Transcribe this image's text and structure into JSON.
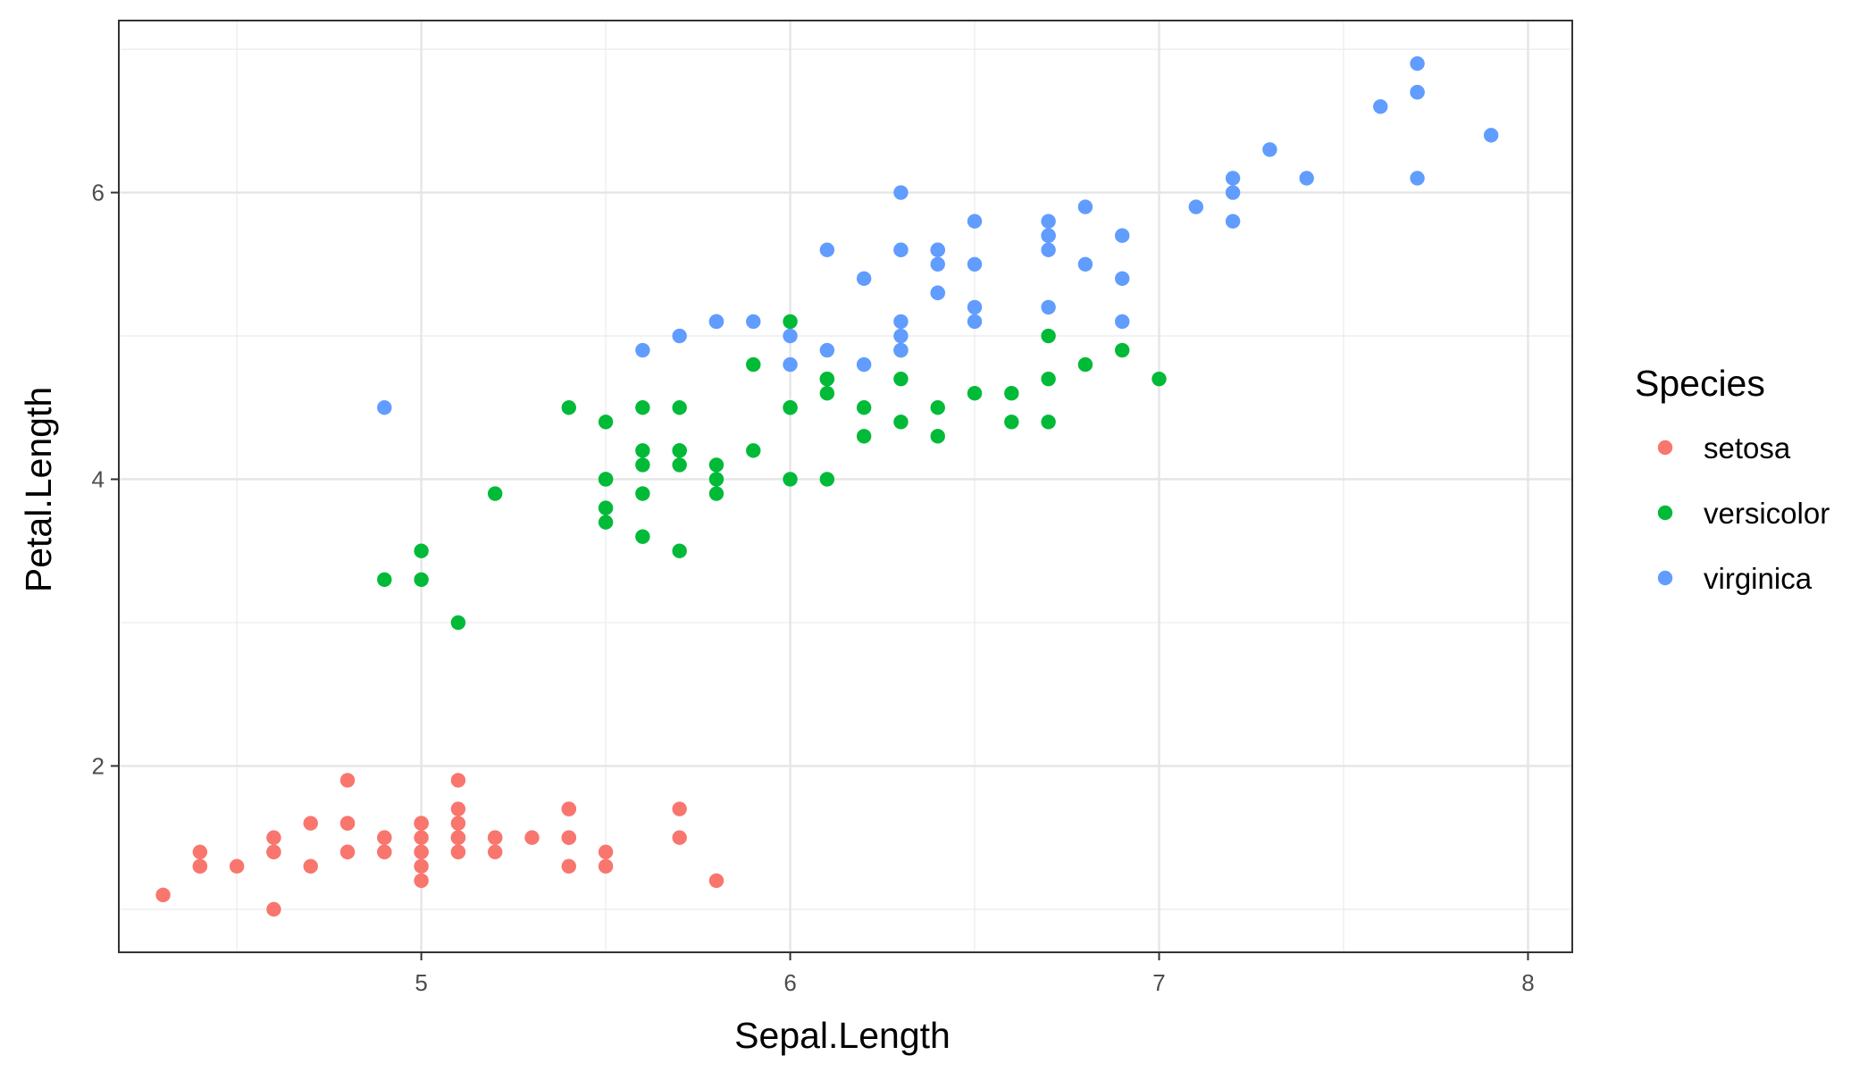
{
  "chart_data": {
    "type": "scatter",
    "xlabel": "Sepal.Length",
    "ylabel": "Petal.Length",
    "xlim": [
      4.18,
      8.12
    ],
    "ylim": [
      0.7,
      7.2
    ],
    "x_ticks": [
      "5",
      "6",
      "7",
      "8"
    ],
    "y_ticks": [
      "2",
      "4",
      "6"
    ],
    "grid": true,
    "legend": {
      "title": "Species",
      "position": "right"
    },
    "series": [
      {
        "name": "setosa",
        "color": "#F8766D",
        "points": [
          [
            5.1,
            1.4
          ],
          [
            4.9,
            1.4
          ],
          [
            4.7,
            1.3
          ],
          [
            4.6,
            1.5
          ],
          [
            5.0,
            1.4
          ],
          [
            5.4,
            1.7
          ],
          [
            4.6,
            1.4
          ],
          [
            5.0,
            1.5
          ],
          [
            4.4,
            1.4
          ],
          [
            4.9,
            1.5
          ],
          [
            5.4,
            1.5
          ],
          [
            4.8,
            1.6
          ],
          [
            4.8,
            1.4
          ],
          [
            4.3,
            1.1
          ],
          [
            5.8,
            1.2
          ],
          [
            5.7,
            1.5
          ],
          [
            5.4,
            1.3
          ],
          [
            5.1,
            1.4
          ],
          [
            5.7,
            1.7
          ],
          [
            5.1,
            1.5
          ],
          [
            5.4,
            1.7
          ],
          [
            5.1,
            1.5
          ],
          [
            4.6,
            1.0
          ],
          [
            5.1,
            1.7
          ],
          [
            4.8,
            1.9
          ],
          [
            5.0,
            1.6
          ],
          [
            5.0,
            1.6
          ],
          [
            5.2,
            1.5
          ],
          [
            5.2,
            1.4
          ],
          [
            4.7,
            1.6
          ],
          [
            4.8,
            1.6
          ],
          [
            5.4,
            1.5
          ],
          [
            5.2,
            1.5
          ],
          [
            5.5,
            1.4
          ],
          [
            4.9,
            1.5
          ],
          [
            5.0,
            1.2
          ],
          [
            5.5,
            1.3
          ],
          [
            4.9,
            1.4
          ],
          [
            4.4,
            1.3
          ],
          [
            5.1,
            1.5
          ],
          [
            5.0,
            1.3
          ],
          [
            4.5,
            1.3
          ],
          [
            4.4,
            1.3
          ],
          [
            5.0,
            1.6
          ],
          [
            5.1,
            1.9
          ],
          [
            4.8,
            1.4
          ],
          [
            5.1,
            1.6
          ],
          [
            4.6,
            1.4
          ],
          [
            5.3,
            1.5
          ],
          [
            5.0,
            1.4
          ]
        ]
      },
      {
        "name": "versicolor",
        "color": "#00BA38",
        "points": [
          [
            7.0,
            4.7
          ],
          [
            6.4,
            4.5
          ],
          [
            6.9,
            4.9
          ],
          [
            5.5,
            4.0
          ],
          [
            6.5,
            4.6
          ],
          [
            5.7,
            4.5
          ],
          [
            6.3,
            4.7
          ],
          [
            4.9,
            3.3
          ],
          [
            6.6,
            4.6
          ],
          [
            5.2,
            3.9
          ],
          [
            5.0,
            3.5
          ],
          [
            5.9,
            4.2
          ],
          [
            6.0,
            4.0
          ],
          [
            6.1,
            4.7
          ],
          [
            5.6,
            3.6
          ],
          [
            6.7,
            4.4
          ],
          [
            5.6,
            4.5
          ],
          [
            5.8,
            4.1
          ],
          [
            6.2,
            4.5
          ],
          [
            5.6,
            3.9
          ],
          [
            5.9,
            4.8
          ],
          [
            6.1,
            4.0
          ],
          [
            6.3,
            4.9
          ],
          [
            6.1,
            4.7
          ],
          [
            6.4,
            4.3
          ],
          [
            6.6,
            4.4
          ],
          [
            6.8,
            4.8
          ],
          [
            6.7,
            5.0
          ],
          [
            6.0,
            4.5
          ],
          [
            5.7,
            3.5
          ],
          [
            5.5,
            3.8
          ],
          [
            5.5,
            3.7
          ],
          [
            5.8,
            3.9
          ],
          [
            6.0,
            5.1
          ],
          [
            5.4,
            4.5
          ],
          [
            6.0,
            4.5
          ],
          [
            6.7,
            4.7
          ],
          [
            6.3,
            4.4
          ],
          [
            5.6,
            4.1
          ],
          [
            5.5,
            4.0
          ],
          [
            5.5,
            4.4
          ],
          [
            6.1,
            4.6
          ],
          [
            5.8,
            4.0
          ],
          [
            5.0,
            3.3
          ],
          [
            5.6,
            4.2
          ],
          [
            5.7,
            4.2
          ],
          [
            5.7,
            4.2
          ],
          [
            6.2,
            4.3
          ],
          [
            5.1,
            3.0
          ],
          [
            5.7,
            4.1
          ]
        ]
      },
      {
        "name": "virginica",
        "color": "#619CFF",
        "points": [
          [
            6.3,
            6.0
          ],
          [
            5.8,
            5.1
          ],
          [
            7.1,
            5.9
          ],
          [
            6.3,
            5.6
          ],
          [
            6.5,
            5.8
          ],
          [
            7.6,
            6.6
          ],
          [
            4.9,
            4.5
          ],
          [
            7.3,
            6.3
          ],
          [
            6.7,
            5.8
          ],
          [
            7.2,
            6.1
          ],
          [
            6.5,
            5.1
          ],
          [
            6.4,
            5.3
          ],
          [
            6.8,
            5.5
          ],
          [
            5.7,
            5.0
          ],
          [
            5.8,
            5.1
          ],
          [
            6.4,
            5.3
          ],
          [
            6.5,
            5.5
          ],
          [
            7.7,
            6.7
          ],
          [
            7.7,
            6.9
          ],
          [
            6.0,
            5.0
          ],
          [
            6.9,
            5.7
          ],
          [
            5.6,
            4.9
          ],
          [
            7.7,
            6.7
          ],
          [
            6.3,
            4.9
          ],
          [
            6.7,
            5.7
          ],
          [
            7.2,
            6.0
          ],
          [
            6.2,
            4.8
          ],
          [
            6.1,
            4.9
          ],
          [
            6.4,
            5.6
          ],
          [
            7.2,
            5.8
          ],
          [
            7.4,
            6.1
          ],
          [
            7.9,
            6.4
          ],
          [
            6.4,
            5.6
          ],
          [
            6.3,
            5.1
          ],
          [
            6.1,
            5.6
          ],
          [
            7.7,
            6.1
          ],
          [
            6.3,
            5.6
          ],
          [
            6.4,
            5.5
          ],
          [
            6.0,
            4.8
          ],
          [
            6.9,
            5.4
          ],
          [
            6.7,
            5.6
          ],
          [
            6.9,
            5.1
          ],
          [
            5.8,
            5.1
          ],
          [
            6.8,
            5.9
          ],
          [
            6.7,
            5.7
          ],
          [
            6.7,
            5.2
          ],
          [
            6.3,
            5.0
          ],
          [
            6.5,
            5.2
          ],
          [
            6.2,
            5.4
          ],
          [
            5.9,
            5.1
          ]
        ]
      }
    ]
  }
}
